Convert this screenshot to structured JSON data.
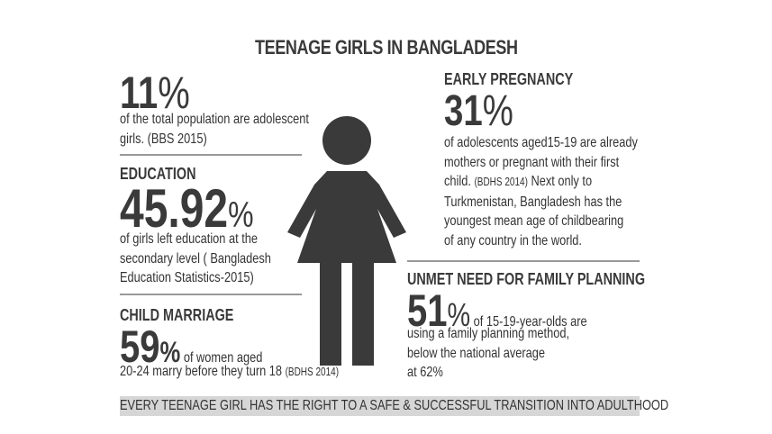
{
  "title": "TEENAGE GIRLS IN BANGLADESH",
  "population": {
    "value": "11",
    "unit": "%",
    "line1": "of the total population are adolescent",
    "line2": "girls. (BBS 2015)"
  },
  "education": {
    "heading": "EDUCATION",
    "value": "45.92",
    "unit": "%",
    "line1": "of girls left education at the",
    "line2": "secondary level ( Bangladesh",
    "line3": "Education Statistics-2015)"
  },
  "child_marriage": {
    "heading": "CHILD MARRIAGE",
    "value": "59",
    "unit": "%",
    "inline": " of women aged",
    "line2": "20-24 marry before they turn 18 ",
    "source": "(BDHS 2014)"
  },
  "early_pregnancy": {
    "heading": "EARLY PREGNANCY",
    "value": "31",
    "unit": "%",
    "line1": "of adolescents aged15-19 are already",
    "line2": "mothers or pregnant with their first",
    "line3a": "child. ",
    "source": "(BDHS 2014)",
    "line3b": " Next only to",
    "line4": "Turkmenistan, Bangladesh has the",
    "line5": "youngest mean age of childbearing",
    "line6": "of any country in the world."
  },
  "family_planning": {
    "heading": "UNMET NEED FOR FAMILY PLANNING",
    "value": "51",
    "unit": "%",
    "inline": " of 15-19-year-olds are",
    "line2": "using a family planning  method,",
    "line3": "below the national average",
    "line4": "at 62%"
  },
  "banner": "EVERY TEENAGE GIRL HAS THE RIGHT TO A SAFE & SUCCESSFUL TRANSITION INTO ADULTHOOD",
  "colors": {
    "figure": "#3a3a3a",
    "banner_bg": "#d6d6d6",
    "rule": "#999999"
  },
  "icons": {
    "figure": "female-figure-icon"
  }
}
